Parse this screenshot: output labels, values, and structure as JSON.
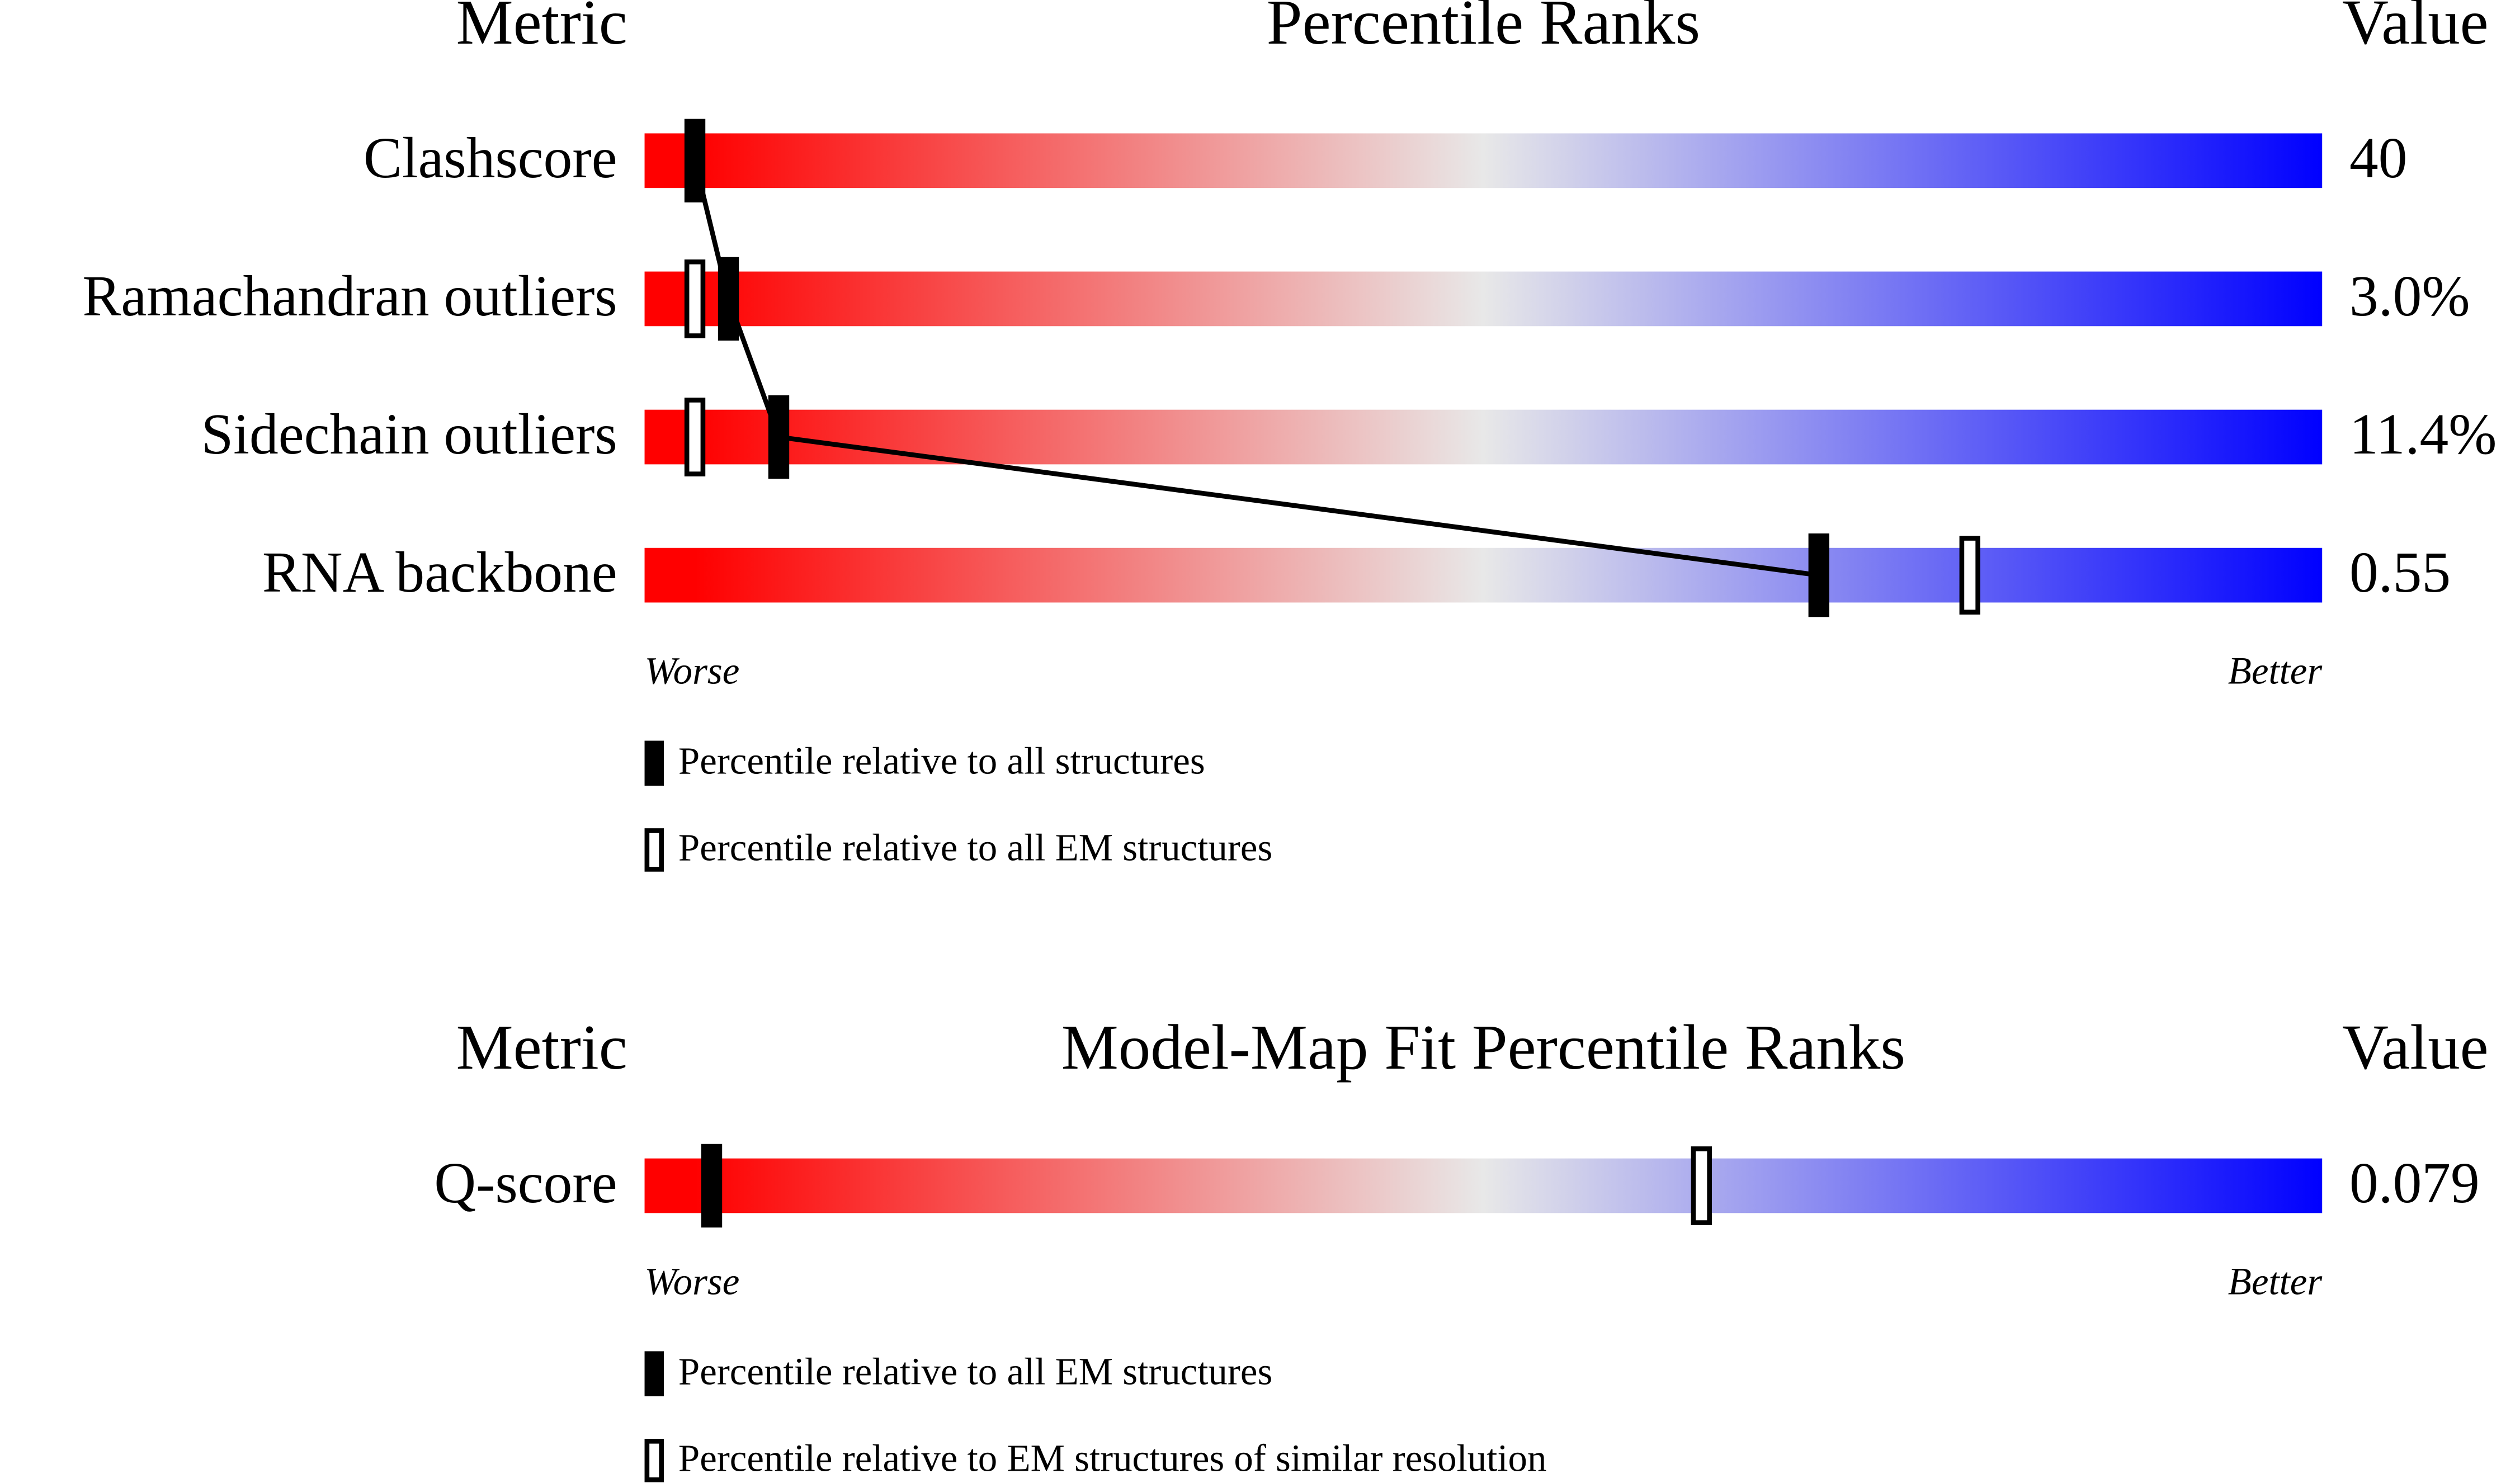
{
  "chart_data": [
    {
      "type": "percentile",
      "header": {
        "metric": "Metric",
        "title": "Percentile Ranks",
        "value": "Value"
      },
      "categories": [
        "Clashscore",
        "Ramachandran outliers",
        "Sidechain outliers",
        "RNA backbone"
      ],
      "metric_values": [
        "40",
        "3.0%",
        "11.4%",
        "0.55"
      ],
      "series": [
        {
          "name": "Percentile relative to all structures",
          "style": "filled",
          "color": "#000000",
          "values": [
            3,
            5,
            8,
            70
          ]
        },
        {
          "name": "Percentile relative to all EM structures",
          "style": "open",
          "color": "#000000",
          "values": [
            null,
            3,
            3,
            79
          ]
        }
      ],
      "connect_series": 0,
      "xlim": [
        0,
        100
      ],
      "scale_labels": {
        "low": "Worse",
        "high": "Better"
      },
      "colors": {
        "worse": "#ff0000",
        "middle": "#e8e8e8",
        "better": "#0000ff"
      }
    },
    {
      "type": "percentile",
      "header": {
        "metric": "Metric",
        "title": "Model-Map Fit Percentile Ranks",
        "value": "Value"
      },
      "categories": [
        "Q-score"
      ],
      "metric_values": [
        "0.079"
      ],
      "series": [
        {
          "name": "Percentile relative to all EM structures",
          "style": "filled",
          "color": "#000000",
          "values": [
            4
          ]
        },
        {
          "name": "Percentile relative to EM structures of similar resolution",
          "style": "open",
          "color": "#000000",
          "values": [
            63
          ]
        }
      ],
      "xlim": [
        0,
        100
      ],
      "scale_labels": {
        "low": "Worse",
        "high": "Better"
      },
      "colors": {
        "worse": "#ff0000",
        "middle": "#e8e8e8",
        "better": "#0000ff"
      }
    }
  ]
}
